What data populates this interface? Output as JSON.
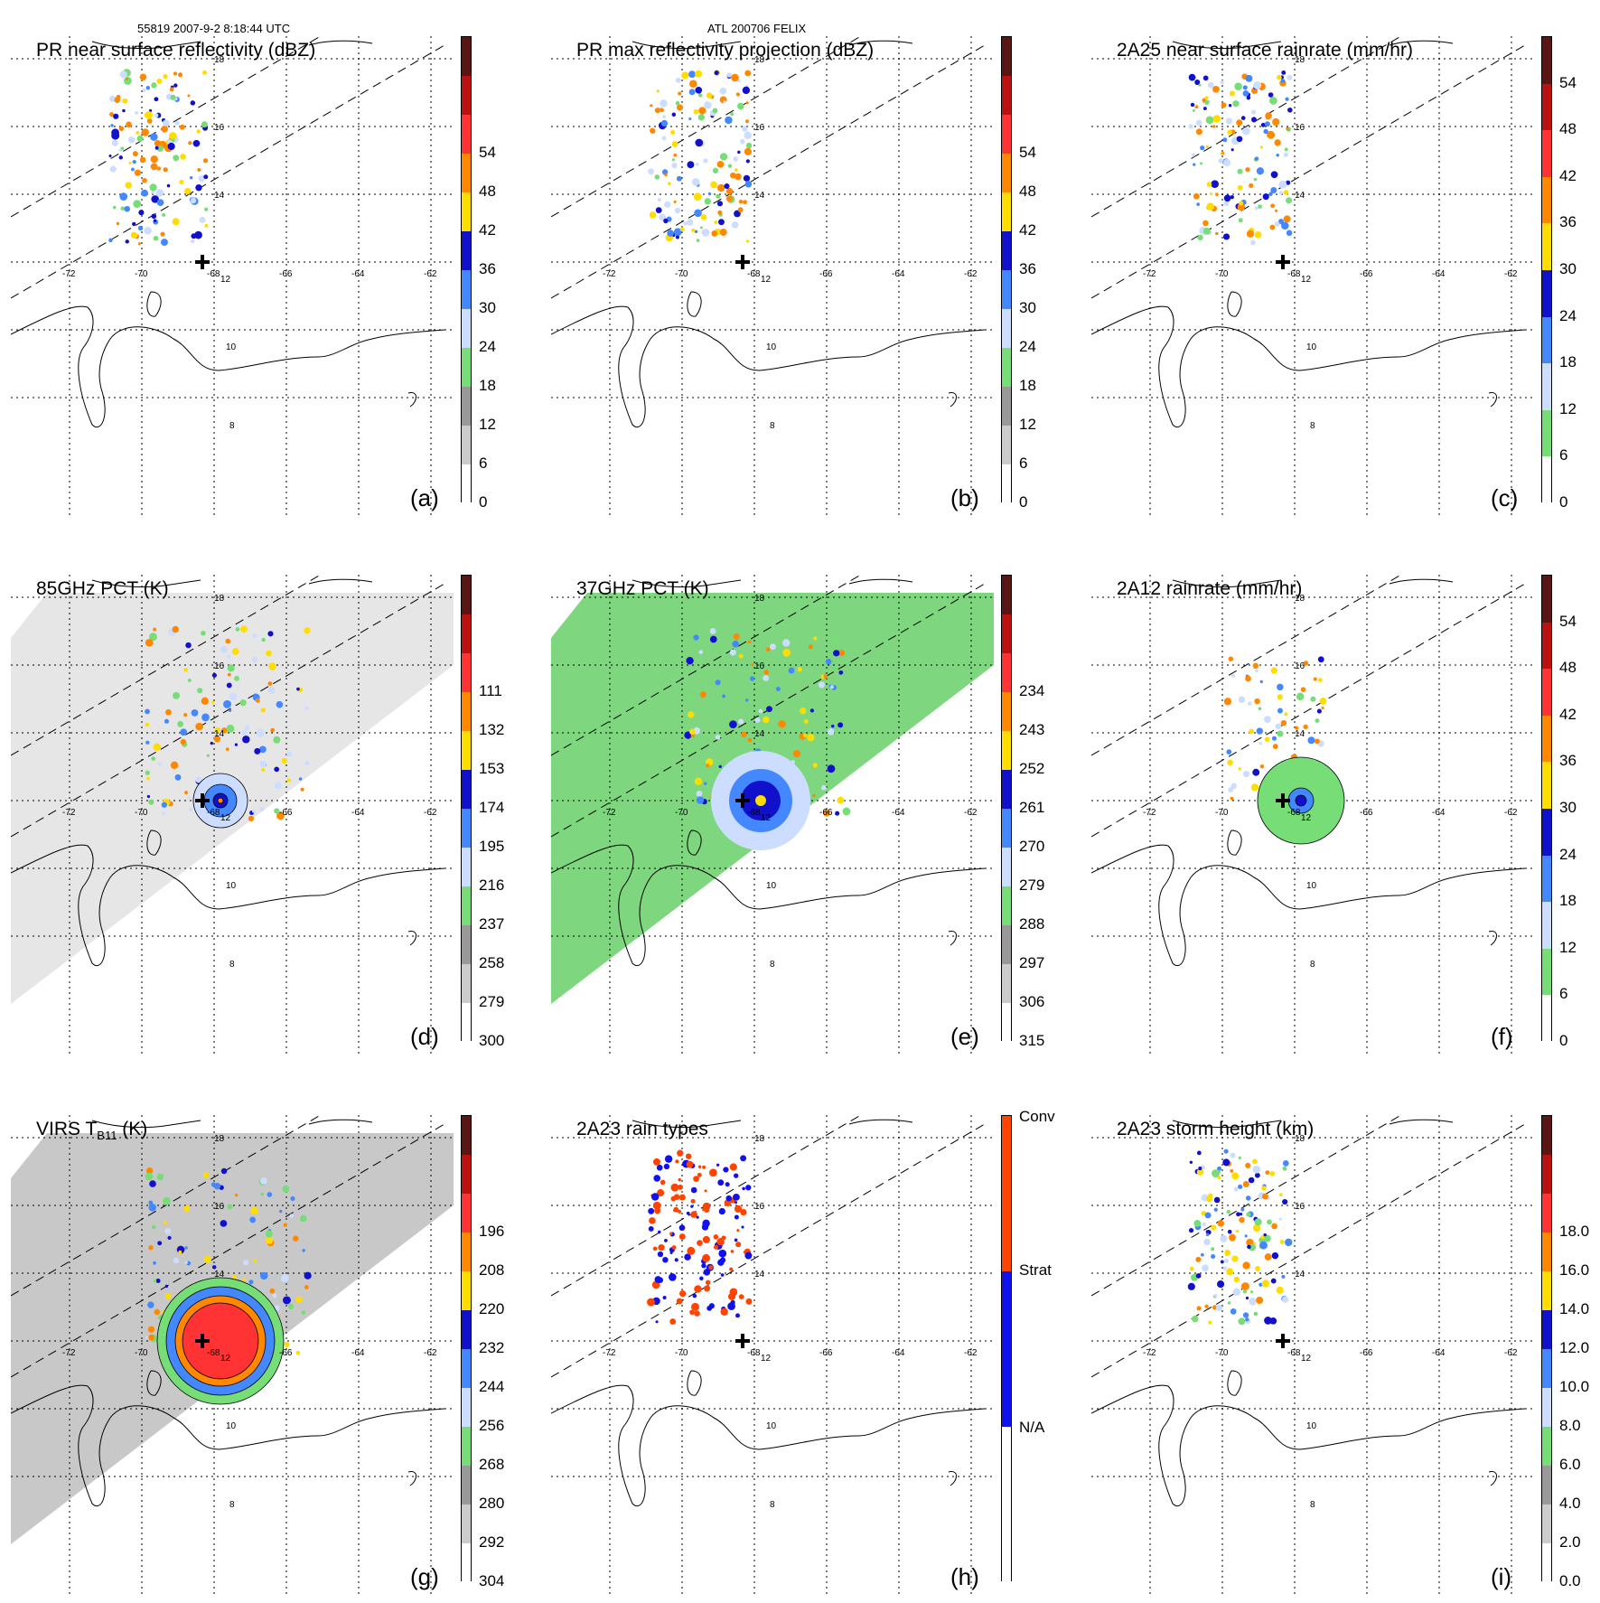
{
  "header": {
    "left_text": "55819 2007-9-2 8:18:44 UTC",
    "center_text": "ATL 200706 FELIX"
  },
  "map_labels": {
    "lats": [
      "18",
      "16",
      "14",
      "12",
      "10",
      "8"
    ],
    "lons": [
      "-72",
      "-70",
      "-68",
      "-66",
      "-64",
      "-62"
    ]
  },
  "panels": [
    {
      "id": "a",
      "title": "PR near surface reflectivity (dBZ)",
      "label": "(a)",
      "ticks": [
        "54",
        "48",
        "42",
        "36",
        "30",
        "24",
        "18",
        "12",
        "6",
        "0"
      ],
      "colors": [
        "#5a1515",
        "#b11",
        "#f33",
        "#f80",
        "#fd0",
        "#11c",
        "#48f",
        "#cdf",
        "#7d7",
        "#999",
        "#ccc",
        "#fff"
      ]
    },
    {
      "id": "b",
      "title": "PR max reflectivity projection (dBZ)",
      "label": "(b)",
      "ticks": [
        "54",
        "48",
        "42",
        "36",
        "30",
        "24",
        "18",
        "12",
        "6",
        "0"
      ],
      "colors": [
        "#5a1515",
        "#b11",
        "#f33",
        "#f80",
        "#fd0",
        "#11c",
        "#48f",
        "#cdf",
        "#7d7",
        "#999",
        "#ccc",
        "#fff"
      ]
    },
    {
      "id": "c",
      "title": "2A25 near surface rainrate (mm/hr)",
      "label": "(c)",
      "ticks": [
        "54",
        "48",
        "42",
        "36",
        "30",
        "24",
        "18",
        "12",
        "6",
        "0"
      ],
      "colors": [
        "#5a1515",
        "#b11",
        "#f33",
        "#f80",
        "#fd0",
        "#11c",
        "#48f",
        "#cdf",
        "#7d7",
        "#fff"
      ]
    },
    {
      "id": "d",
      "title": "85GHz PCT (K)",
      "label": "(d)",
      "ticks": [
        "111",
        "132",
        "153",
        "174",
        "195",
        "216",
        "237",
        "258",
        "279",
        "300"
      ],
      "colors": [
        "#5a1515",
        "#b11",
        "#f33",
        "#f80",
        "#fd0",
        "#11c",
        "#48f",
        "#cdf",
        "#7d7",
        "#999",
        "#ccc",
        "#fff"
      ]
    },
    {
      "id": "e",
      "title": "37GHz PCT (K)",
      "label": "(e)",
      "ticks": [
        "234",
        "243",
        "252",
        "261",
        "270",
        "279",
        "288",
        "297",
        "306",
        "315"
      ],
      "colors": [
        "#5a1515",
        "#b11",
        "#f33",
        "#f80",
        "#fd0",
        "#11c",
        "#48f",
        "#cdf",
        "#7d7",
        "#999",
        "#ccc",
        "#fff"
      ]
    },
    {
      "id": "f",
      "title": "2A12 rainrate (mm/hr)",
      "label": "(f)",
      "ticks": [
        "54",
        "48",
        "42",
        "36",
        "30",
        "24",
        "18",
        "12",
        "6",
        "0"
      ],
      "colors": [
        "#5a1515",
        "#b11",
        "#f33",
        "#f80",
        "#fd0",
        "#11c",
        "#48f",
        "#cdf",
        "#7d7",
        "#fff"
      ]
    },
    {
      "id": "g",
      "title": "VIRS T",
      "title_sub": "B11",
      "title_suffix": " (K)",
      "label": "(g)",
      "ticks": [
        "196",
        "208",
        "220",
        "232",
        "244",
        "256",
        "268",
        "280",
        "292",
        "304"
      ],
      "colors": [
        "#5a1515",
        "#b11",
        "#f33",
        "#f80",
        "#fd0",
        "#11c",
        "#48f",
        "#cdf",
        "#7d7",
        "#999",
        "#ccc",
        "#fff"
      ]
    },
    {
      "id": "h",
      "title": "2A23 rain types",
      "label": "(h)",
      "ticks": [
        "Conv",
        "Strat",
        "N/A"
      ],
      "colors": [
        "#f40",
        "#11e",
        "#fff"
      ]
    },
    {
      "id": "i",
      "title": "2A23 storm height (km)",
      "label": "(i)",
      "ticks": [
        "18.0",
        "16.0",
        "14.0",
        "12.0",
        "10.0",
        "8.0",
        "6.0",
        "4.0",
        "2.0",
        "0.0"
      ],
      "colors": [
        "#5a1515",
        "#b11",
        "#f33",
        "#f80",
        "#fd0",
        "#11c",
        "#48f",
        "#cdf",
        "#7d7",
        "#999",
        "#ccc",
        "#fff"
      ]
    }
  ]
}
